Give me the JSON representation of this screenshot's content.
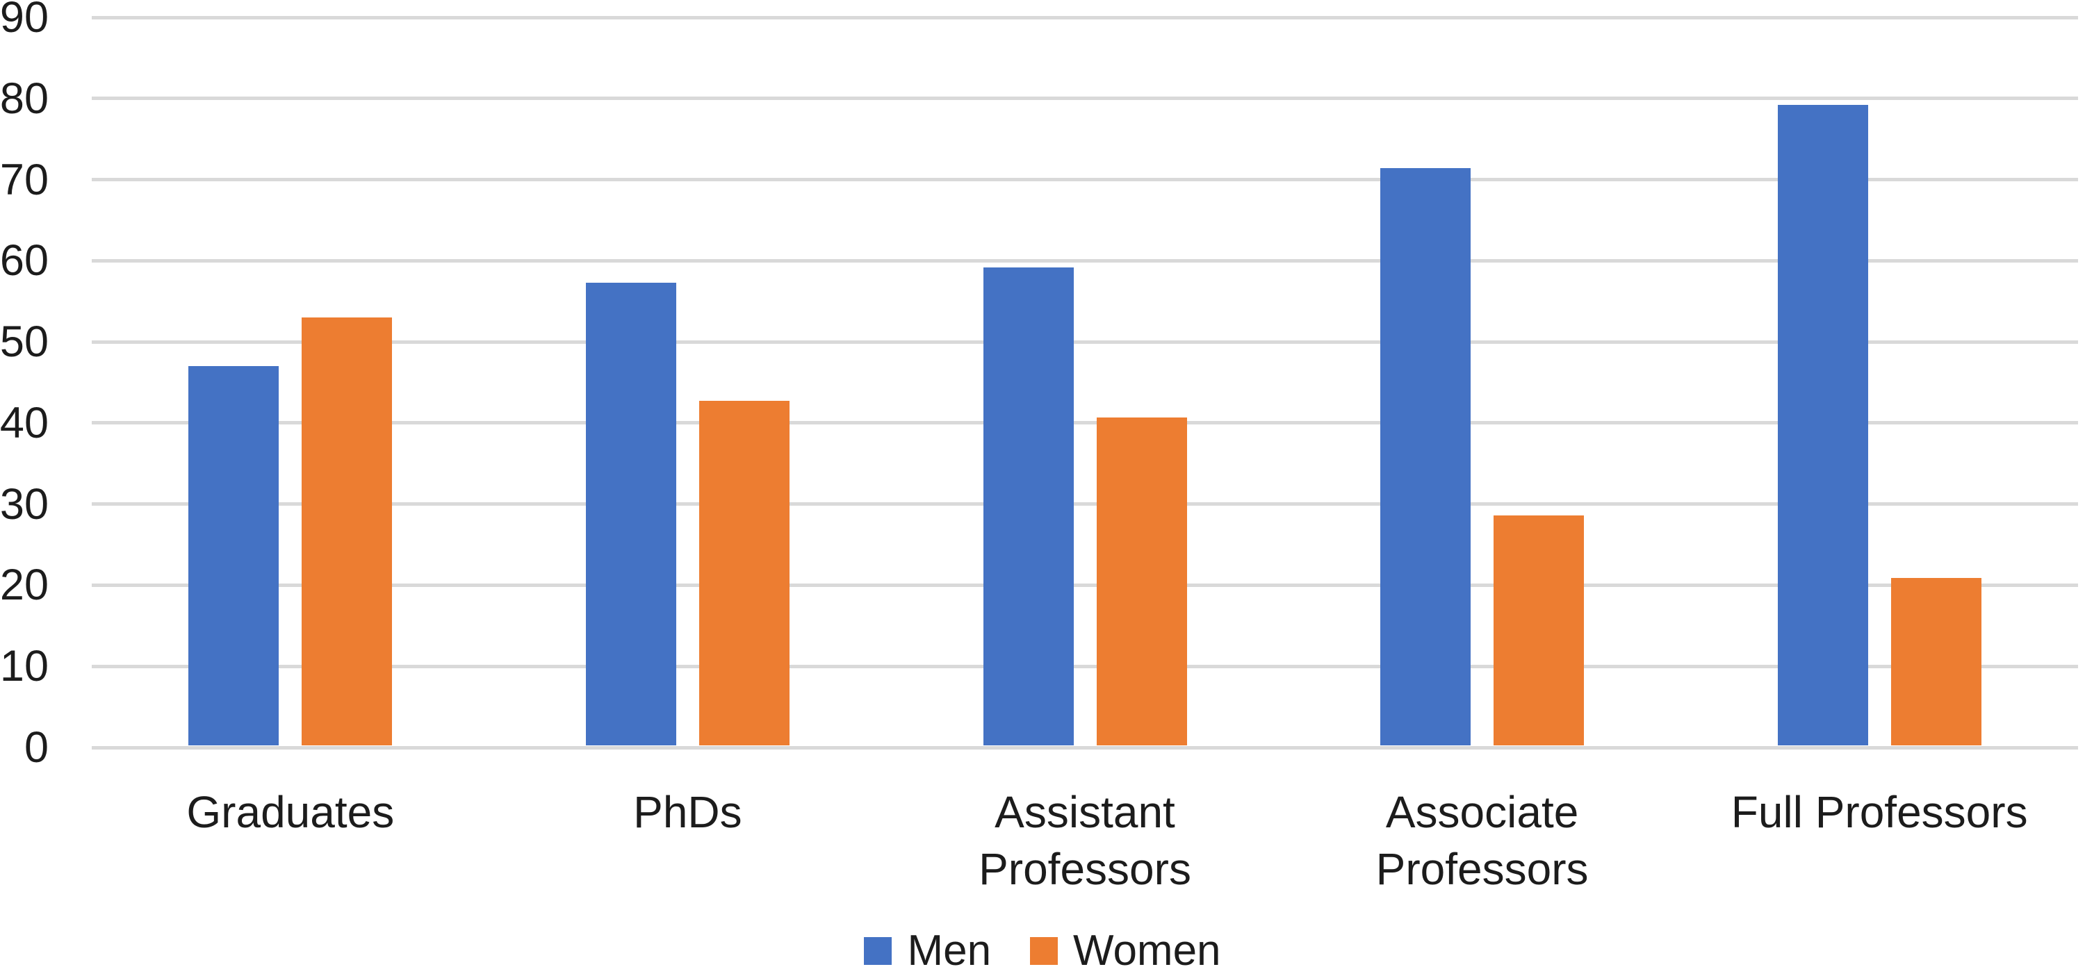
{
  "chart_data": {
    "type": "bar",
    "title": "",
    "xlabel": "",
    "ylabel": "",
    "categories": [
      "Graduates",
      "PhDs",
      "Assistant Professors",
      "Associate Professors",
      "Full Professors"
    ],
    "series": [
      {
        "name": "Men",
        "color": "#4472C4",
        "values": [
          47,
          57.3,
          59.2,
          71.4,
          79.2
        ]
      },
      {
        "name": "Women",
        "color": "#ED7D31",
        "values": [
          53,
          42.7,
          40.7,
          28.6,
          20.9
        ]
      }
    ],
    "ylim": [
      0,
      90
    ],
    "yticks": [
      0,
      10,
      20,
      30,
      40,
      50,
      60,
      70,
      80,
      90
    ],
    "grid": "horizontal",
    "gridline_color": "#D9D9D9",
    "legend_position": "bottom",
    "text_color": "#1C1C1C",
    "background_color": "#FFFFFF"
  }
}
